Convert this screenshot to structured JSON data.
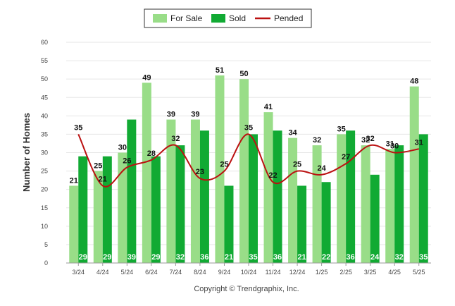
{
  "chart_data": {
    "type": "bar",
    "ylabel": "Number of Homes",
    "xlabel": "",
    "ylim": [
      0,
      60
    ],
    "yticks": [
      0,
      5,
      10,
      15,
      20,
      25,
      30,
      35,
      40,
      45,
      50,
      55,
      60
    ],
    "grid": true,
    "legend_position": "top-center",
    "categories": [
      "3/24",
      "4/24",
      "5/24",
      "6/24",
      "7/24",
      "8/24",
      "9/24",
      "10/24",
      "11/24",
      "12/24",
      "1/25",
      "2/25",
      "3/25",
      "4/25",
      "5/25"
    ],
    "series": [
      {
        "name": "For Sale",
        "kind": "bar",
        "color": "#99dd88",
        "values": [
          21,
          25,
          30,
          49,
          39,
          39,
          51,
          50,
          41,
          34,
          32,
          35,
          32,
          31,
          48
        ]
      },
      {
        "name": "Sold",
        "kind": "bar",
        "color": "#11aa33",
        "values": [
          29,
          29,
          39,
          29,
          32,
          36,
          21,
          35,
          36,
          21,
          22,
          36,
          24,
          32,
          35
        ]
      },
      {
        "name": "Pended",
        "kind": "line",
        "color": "#bb1111",
        "values": [
          35,
          21,
          26,
          28,
          32,
          23,
          25,
          35,
          22,
          25,
          24,
          27,
          32,
          30,
          31
        ]
      }
    ]
  },
  "footer": {
    "copyright": "Copyright © Trendgraphix, Inc."
  }
}
